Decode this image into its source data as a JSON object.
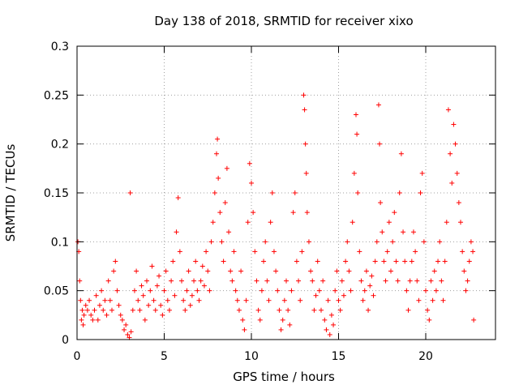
{
  "chart_data": {
    "type": "scatter",
    "title": "Day 138 of 2018, SRMTID for receiver xixo",
    "xlabel": "GPS time / hours",
    "ylabel": "SRMTID / TECUs",
    "xlim": [
      0,
      24
    ],
    "ylim": [
      0,
      0.3
    ],
    "grid": true,
    "x_ticks": [
      0,
      5,
      10,
      15,
      20
    ],
    "x_tick_labels": [
      "0",
      "5",
      "10",
      "15",
      "20"
    ],
    "y_ticks": [
      0,
      0.05,
      0.1,
      0.15,
      0.2,
      0.25,
      0.3
    ],
    "y_tick_labels": [
      "0",
      "0.05",
      "0.1",
      "0.15",
      "0.2",
      "0.25",
      "0.3"
    ],
    "marker": "+",
    "marker_color": "#ff0000",
    "series": [
      {
        "name": "SRMTID",
        "points": [
          [
            0.05,
            0.1
          ],
          [
            0.1,
            0.09
          ],
          [
            0.15,
            0.06
          ],
          [
            0.2,
            0.04
          ],
          [
            0.25,
            0.02
          ],
          [
            0.3,
            0.03
          ],
          [
            0.35,
            0.015
          ],
          [
            0.4,
            0.025
          ],
          [
            0.5,
            0.035
          ],
          [
            0.6,
            0.03
          ],
          [
            0.7,
            0.04
          ],
          [
            0.8,
            0.025
          ],
          [
            0.9,
            0.02
          ],
          [
            1.0,
            0.03
          ],
          [
            1.1,
            0.045
          ],
          [
            1.2,
            0.02
          ],
          [
            1.3,
            0.035
          ],
          [
            1.4,
            0.05
          ],
          [
            1.5,
            0.03
          ],
          [
            1.6,
            0.04
          ],
          [
            1.7,
            0.025
          ],
          [
            1.8,
            0.06
          ],
          [
            1.9,
            0.04
          ],
          [
            2.0,
            0.03
          ],
          [
            2.1,
            0.07
          ],
          [
            2.2,
            0.08
          ],
          [
            2.3,
            0.05
          ],
          [
            2.4,
            0.035
          ],
          [
            2.5,
            0.025
          ],
          [
            2.6,
            0.02
          ],
          [
            2.7,
            0.01
          ],
          [
            2.8,
            0.015
          ],
          [
            2.9,
            0.005
          ],
          [
            3.0,
            0.002
          ],
          [
            3.05,
            0.15
          ],
          [
            3.1,
            0.008
          ],
          [
            3.2,
            0.03
          ],
          [
            3.3,
            0.05
          ],
          [
            3.4,
            0.07
          ],
          [
            3.5,
            0.04
          ],
          [
            3.6,
            0.03
          ],
          [
            3.7,
            0.055
          ],
          [
            3.8,
            0.045
          ],
          [
            3.9,
            0.02
          ],
          [
            4.0,
            0.06
          ],
          [
            4.1,
            0.035
          ],
          [
            4.2,
            0.05
          ],
          [
            4.3,
            0.075
          ],
          [
            4.4,
            0.04
          ],
          [
            4.5,
            0.03
          ],
          [
            4.6,
            0.055
          ],
          [
            4.7,
            0.065
          ],
          [
            4.8,
            0.035
          ],
          [
            4.9,
            0.025
          ],
          [
            5.0,
            0.05
          ],
          [
            5.1,
            0.07
          ],
          [
            5.2,
            0.04
          ],
          [
            5.3,
            0.03
          ],
          [
            5.4,
            0.06
          ],
          [
            5.5,
            0.08
          ],
          [
            5.6,
            0.045
          ],
          [
            5.7,
            0.11
          ],
          [
            5.8,
            0.145
          ],
          [
            5.9,
            0.09
          ],
          [
            6.0,
            0.06
          ],
          [
            6.1,
            0.04
          ],
          [
            6.2,
            0.03
          ],
          [
            6.3,
            0.05
          ],
          [
            6.4,
            0.07
          ],
          [
            6.5,
            0.035
          ],
          [
            6.6,
            0.045
          ],
          [
            6.7,
            0.06
          ],
          [
            6.8,
            0.08
          ],
          [
            6.9,
            0.05
          ],
          [
            7.0,
            0.04
          ],
          [
            7.1,
            0.06
          ],
          [
            7.2,
            0.075
          ],
          [
            7.3,
            0.055
          ],
          [
            7.4,
            0.09
          ],
          [
            7.5,
            0.07
          ],
          [
            7.6,
            0.05
          ],
          [
            7.7,
            0.1
          ],
          [
            7.8,
            0.12
          ],
          [
            7.9,
            0.15
          ],
          [
            8.0,
            0.19
          ],
          [
            8.05,
            0.205
          ],
          [
            8.1,
            0.165
          ],
          [
            8.2,
            0.13
          ],
          [
            8.3,
            0.1
          ],
          [
            8.4,
            0.08
          ],
          [
            8.5,
            0.14
          ],
          [
            8.6,
            0.175
          ],
          [
            8.7,
            0.11
          ],
          [
            8.8,
            0.07
          ],
          [
            8.9,
            0.06
          ],
          [
            9.0,
            0.09
          ],
          [
            9.1,
            0.05
          ],
          [
            9.2,
            0.04
          ],
          [
            9.3,
            0.03
          ],
          [
            9.4,
            0.07
          ],
          [
            9.5,
            0.02
          ],
          [
            9.6,
            0.01
          ],
          [
            9.7,
            0.04
          ],
          [
            9.8,
            0.12
          ],
          [
            9.9,
            0.18
          ],
          [
            10.0,
            0.16
          ],
          [
            10.1,
            0.13
          ],
          [
            10.2,
            0.09
          ],
          [
            10.3,
            0.06
          ],
          [
            10.4,
            0.03
          ],
          [
            10.5,
            0.02
          ],
          [
            10.6,
            0.05
          ],
          [
            10.7,
            0.08
          ],
          [
            10.8,
            0.1
          ],
          [
            10.9,
            0.06
          ],
          [
            11.0,
            0.04
          ],
          [
            11.1,
            0.12
          ],
          [
            11.2,
            0.15
          ],
          [
            11.3,
            0.09
          ],
          [
            11.4,
            0.07
          ],
          [
            11.5,
            0.05
          ],
          [
            11.6,
            0.03
          ],
          [
            11.7,
            0.01
          ],
          [
            11.8,
            0.02
          ],
          [
            11.9,
            0.04
          ],
          [
            12.0,
            0.06
          ],
          [
            12.1,
            0.03
          ],
          [
            12.2,
            0.015
          ],
          [
            12.3,
            0.05
          ],
          [
            12.4,
            0.13
          ],
          [
            12.5,
            0.15
          ],
          [
            12.6,
            0.08
          ],
          [
            12.7,
            0.06
          ],
          [
            12.8,
            0.04
          ],
          [
            12.9,
            0.09
          ],
          [
            13.0,
            0.25
          ],
          [
            13.05,
            0.235
          ],
          [
            13.1,
            0.2
          ],
          [
            13.15,
            0.17
          ],
          [
            13.2,
            0.13
          ],
          [
            13.3,
            0.1
          ],
          [
            13.4,
            0.07
          ],
          [
            13.5,
            0.06
          ],
          [
            13.6,
            0.03
          ],
          [
            13.7,
            0.045
          ],
          [
            13.8,
            0.08
          ],
          [
            13.9,
            0.05
          ],
          [
            14.0,
            0.03
          ],
          [
            14.1,
            0.06
          ],
          [
            14.2,
            0.02
          ],
          [
            14.3,
            0.01
          ],
          [
            14.4,
            0.04
          ],
          [
            14.5,
            0.005
          ],
          [
            14.6,
            0.025
          ],
          [
            14.7,
            0.015
          ],
          [
            14.8,
            0.05
          ],
          [
            14.9,
            0.07
          ],
          [
            15.0,
            0.04
          ],
          [
            15.1,
            0.03
          ],
          [
            15.2,
            0.06
          ],
          [
            15.3,
            0.045
          ],
          [
            15.4,
            0.08
          ],
          [
            15.5,
            0.1
          ],
          [
            15.6,
            0.07
          ],
          [
            15.7,
            0.05
          ],
          [
            15.8,
            0.12
          ],
          [
            15.9,
            0.17
          ],
          [
            16.0,
            0.23
          ],
          [
            16.05,
            0.21
          ],
          [
            16.1,
            0.15
          ],
          [
            16.2,
            0.09
          ],
          [
            16.3,
            0.06
          ],
          [
            16.4,
            0.04
          ],
          [
            16.5,
            0.05
          ],
          [
            16.6,
            0.07
          ],
          [
            16.7,
            0.03
          ],
          [
            16.8,
            0.055
          ],
          [
            16.9,
            0.065
          ],
          [
            17.0,
            0.045
          ],
          [
            17.1,
            0.08
          ],
          [
            17.2,
            0.1
          ],
          [
            17.3,
            0.24
          ],
          [
            17.35,
            0.2
          ],
          [
            17.4,
            0.14
          ],
          [
            17.5,
            0.11
          ],
          [
            17.6,
            0.08
          ],
          [
            17.7,
            0.06
          ],
          [
            17.8,
            0.09
          ],
          [
            17.9,
            0.12
          ],
          [
            18.0,
            0.07
          ],
          [
            18.1,
            0.1
          ],
          [
            18.2,
            0.13
          ],
          [
            18.3,
            0.08
          ],
          [
            18.4,
            0.06
          ],
          [
            18.5,
            0.15
          ],
          [
            18.6,
            0.19
          ],
          [
            18.7,
            0.11
          ],
          [
            18.8,
            0.08
          ],
          [
            18.9,
            0.05
          ],
          [
            19.0,
            0.03
          ],
          [
            19.1,
            0.06
          ],
          [
            19.2,
            0.08
          ],
          [
            19.3,
            0.11
          ],
          [
            19.4,
            0.09
          ],
          [
            19.5,
            0.06
          ],
          [
            19.6,
            0.04
          ],
          [
            19.7,
            0.15
          ],
          [
            19.8,
            0.17
          ],
          [
            19.9,
            0.1
          ],
          [
            20.0,
            0.05
          ],
          [
            20.1,
            0.03
          ],
          [
            20.2,
            0.02
          ],
          [
            20.3,
            0.06
          ],
          [
            20.4,
            0.04
          ],
          [
            20.5,
            0.07
          ],
          [
            20.6,
            0.05
          ],
          [
            20.7,
            0.08
          ],
          [
            20.8,
            0.1
          ],
          [
            20.9,
            0.06
          ],
          [
            21.0,
            0.04
          ],
          [
            21.1,
            0.08
          ],
          [
            21.2,
            0.12
          ],
          [
            21.3,
            0.235
          ],
          [
            21.4,
            0.19
          ],
          [
            21.5,
            0.16
          ],
          [
            21.6,
            0.22
          ],
          [
            21.7,
            0.2
          ],
          [
            21.8,
            0.17
          ],
          [
            21.9,
            0.14
          ],
          [
            22.0,
            0.12
          ],
          [
            22.1,
            0.09
          ],
          [
            22.2,
            0.07
          ],
          [
            22.3,
            0.05
          ],
          [
            22.4,
            0.06
          ],
          [
            22.5,
            0.08
          ],
          [
            22.6,
            0.1
          ],
          [
            22.7,
            0.09
          ],
          [
            22.75,
            0.02
          ]
        ]
      }
    ]
  }
}
